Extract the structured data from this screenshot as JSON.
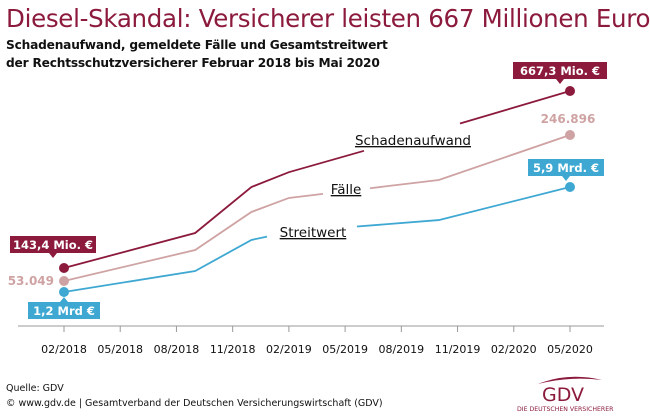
{
  "title": "Diesel-Skandal: Versicherer leisten 667 Millionen Euro",
  "subtitle_lines": [
    "Schadenaufwand, gemeldete Fälle und Gesamtstreitwert",
    "der Rechtsschutzversicherer Februar 2018 bis Mai 2020"
  ],
  "chart_data": {
    "type": "line",
    "title": "Diesel-Skandal: Versicherer leisten 667 Millionen Euro",
    "xlabel": "",
    "ylabel": "",
    "x_ticks": [
      "02/2018",
      "05/2018",
      "08/2018",
      "11/2018",
      "02/2019",
      "05/2019",
      "08/2019",
      "11/2019",
      "02/2020",
      "05/2020"
    ],
    "grid": false,
    "legend": "inline labels on lines",
    "series": [
      {
        "name": "Schadenaufwand",
        "unit": "Mio. €",
        "color": "#8b1a3c",
        "x": [
          "02/2018",
          "09/2018",
          "12/2018",
          "02/2019",
          "11/2019",
          "05/2020"
        ],
        "values": [
          143.4,
          247,
          383,
          427,
          569,
          667.3
        ],
        "start_label": "143,4 Mio. €",
        "end_label": "667,3 Mio. €"
      },
      {
        "name": "Fälle",
        "unit": "",
        "color": "#cfa3a3",
        "x": [
          "02/2018",
          "09/2018",
          "12/2018",
          "02/2019",
          "10/2019",
          "05/2020"
        ],
        "values": [
          53049,
          94200,
          144700,
          163300,
          187200,
          246896
        ],
        "start_label": "53.049",
        "end_label": "246.896"
      },
      {
        "name": "Streitwert",
        "unit": "Mrd. €",
        "color": "#3ea8d2",
        "x": [
          "02/2018",
          "09/2018",
          "12/2018",
          "02/2019",
          "10/2019",
          "05/2020"
        ],
        "values": [
          1.2,
          2.14,
          3.53,
          3.89,
          4.42,
          5.9
        ],
        "start_label": "1,2 Mrd €",
        "end_label": "5,9 Mrd. €"
      }
    ]
  },
  "footer": {
    "source": "Quelle: GDV",
    "copyright": "© www.gdv.de | Gesamtverband der Deutschen Versicherungswirtschaft (GDV)"
  },
  "logo": {
    "text": "GDV",
    "tagline": "DIE DEUTSCHEN VERSICHERER"
  }
}
